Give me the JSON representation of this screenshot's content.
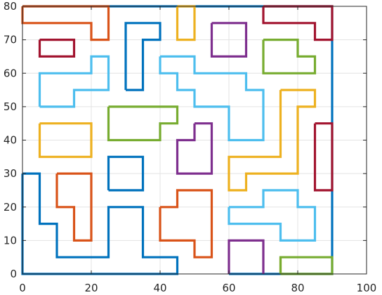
{
  "chart_data": {
    "type": "line",
    "title": "",
    "xlabel": "",
    "ylabel": "",
    "xlim": [
      0,
      100
    ],
    "ylim": [
      0,
      80
    ],
    "xticks": [
      0,
      20,
      40,
      60,
      80,
      100
    ],
    "yticks": [
      0,
      10,
      20,
      30,
      40,
      50,
      60,
      70,
      80
    ],
    "grid": true,
    "colors": {
      "blue": "#0072BD",
      "orange": "#D95319",
      "yellow": "#EDB120",
      "purple": "#7E2F8E",
      "green": "#77AC30",
      "lightblue": "#4DBEEE",
      "red": "#A2142F"
    },
    "series": [
      {
        "color": "blue",
        "points": [
          [
            0,
            30
          ],
          [
            0,
            0
          ],
          [
            45,
            0
          ],
          [
            45,
            5
          ],
          [
            35,
            5
          ],
          [
            35,
            20
          ],
          [
            25,
            20
          ],
          [
            25,
            5
          ],
          [
            10,
            5
          ],
          [
            10,
            15
          ],
          [
            5,
            15
          ],
          [
            5,
            30
          ],
          [
            0,
            30
          ]
        ]
      },
      {
        "color": "blue",
        "points": [
          [
            0,
            80
          ],
          [
            90,
            80
          ],
          [
            90,
            0
          ],
          [
            60,
            0
          ]
        ]
      },
      {
        "color": "blue",
        "points": [
          [
            30,
            55
          ],
          [
            30,
            75
          ],
          [
            40,
            75
          ],
          [
            40,
            70
          ],
          [
            35,
            70
          ],
          [
            35,
            55
          ],
          [
            30,
            55
          ]
        ]
      },
      {
        "color": "blue",
        "points": [
          [
            25,
            25
          ],
          [
            25,
            35
          ],
          [
            35,
            35
          ],
          [
            35,
            25
          ],
          [
            25,
            25
          ]
        ]
      },
      {
        "color": "orange",
        "points": [
          [
            0,
            80
          ],
          [
            25,
            80
          ],
          [
            25,
            70
          ],
          [
            20,
            70
          ],
          [
            20,
            75
          ],
          [
            0,
            75
          ],
          [
            0,
            80
          ]
        ]
      },
      {
        "color": "orange",
        "points": [
          [
            10,
            30
          ],
          [
            20,
            30
          ],
          [
            20,
            10
          ],
          [
            15,
            10
          ],
          [
            15,
            20
          ],
          [
            10,
            20
          ],
          [
            10,
            30
          ]
        ]
      },
      {
        "color": "orange",
        "points": [
          [
            40,
            20
          ],
          [
            45,
            20
          ],
          [
            45,
            25
          ],
          [
            55,
            25
          ],
          [
            55,
            5
          ],
          [
            50,
            5
          ],
          [
            50,
            10
          ],
          [
            40,
            10
          ],
          [
            40,
            20
          ]
        ]
      },
      {
        "color": "yellow",
        "points": [
          [
            45,
            80
          ],
          [
            50,
            80
          ],
          [
            50,
            70
          ],
          [
            45,
            70
          ],
          [
            45,
            80
          ]
        ]
      },
      {
        "color": "yellow",
        "points": [
          [
            5,
            45
          ],
          [
            20,
            45
          ],
          [
            20,
            35
          ],
          [
            5,
            35
          ],
          [
            5,
            45
          ]
        ]
      },
      {
        "color": "yellow",
        "points": [
          [
            75,
            55
          ],
          [
            85,
            55
          ],
          [
            85,
            50
          ],
          [
            80,
            50
          ],
          [
            80,
            30
          ],
          [
            65,
            30
          ],
          [
            65,
            25
          ],
          [
            60,
            25
          ],
          [
            60,
            35
          ],
          [
            75,
            35
          ],
          [
            75,
            55
          ]
        ]
      },
      {
        "color": "yellow",
        "points": [
          [
            75,
            5
          ],
          [
            75,
            0
          ]
        ]
      },
      {
        "color": "red",
        "points": [
          [
            70,
            80
          ],
          [
            90,
            80
          ],
          [
            90,
            70
          ],
          [
            85,
            70
          ],
          [
            85,
            75
          ],
          [
            70,
            75
          ],
          [
            70,
            80
          ]
        ]
      },
      {
        "color": "red",
        "points": [
          [
            5,
            70
          ],
          [
            15,
            70
          ],
          [
            15,
            65
          ],
          [
            5,
            65
          ],
          [
            5,
            70
          ]
        ]
      },
      {
        "color": "red",
        "points": [
          [
            85,
            45
          ],
          [
            90,
            45
          ],
          [
            90,
            25
          ],
          [
            85,
            25
          ],
          [
            85,
            45
          ]
        ]
      },
      {
        "color": "purple",
        "points": [
          [
            55,
            75
          ],
          [
            65,
            75
          ],
          [
            65,
            65
          ],
          [
            55,
            65
          ],
          [
            55,
            75
          ]
        ]
      },
      {
        "color": "purple",
        "points": [
          [
            50,
            45
          ],
          [
            55,
            45
          ],
          [
            55,
            30
          ],
          [
            45,
            30
          ],
          [
            45,
            40
          ],
          [
            50,
            40
          ],
          [
            50,
            45
          ]
        ]
      },
      {
        "color": "purple",
        "points": [
          [
            60,
            0
          ],
          [
            60,
            10
          ],
          [
            70,
            10
          ],
          [
            70,
            0
          ]
        ]
      },
      {
        "color": "green",
        "points": [
          [
            70,
            70
          ],
          [
            80,
            70
          ],
          [
            80,
            65
          ],
          [
            85,
            65
          ],
          [
            85,
            60
          ],
          [
            70,
            60
          ],
          [
            70,
            70
          ]
        ]
      },
      {
        "color": "green",
        "points": [
          [
            25,
            50
          ],
          [
            45,
            50
          ],
          [
            45,
            45
          ],
          [
            40,
            45
          ],
          [
            40,
            40
          ],
          [
            25,
            40
          ],
          [
            25,
            50
          ]
        ]
      },
      {
        "color": "green",
        "points": [
          [
            75,
            0
          ],
          [
            75,
            5
          ],
          [
            90,
            5
          ],
          [
            90,
            0
          ],
          [
            75,
            0
          ]
        ]
      },
      {
        "color": "lightblue",
        "points": [
          [
            5,
            50
          ],
          [
            5,
            60
          ],
          [
            20,
            60
          ],
          [
            20,
            65
          ],
          [
            25,
            65
          ],
          [
            25,
            55
          ],
          [
            15,
            55
          ],
          [
            15,
            50
          ],
          [
            5,
            50
          ]
        ]
      },
      {
        "color": "lightblue",
        "points": [
          [
            40,
            65
          ],
          [
            50,
            65
          ],
          [
            50,
            60
          ],
          [
            65,
            60
          ],
          [
            65,
            55
          ],
          [
            70,
            55
          ],
          [
            70,
            40
          ],
          [
            60,
            40
          ],
          [
            60,
            50
          ],
          [
            50,
            50
          ],
          [
            50,
            55
          ],
          [
            45,
            55
          ],
          [
            45,
            60
          ],
          [
            40,
            60
          ],
          [
            40,
            65
          ]
        ]
      },
      {
        "color": "lightblue",
        "points": [
          [
            60,
            20
          ],
          [
            70,
            20
          ],
          [
            70,
            25
          ],
          [
            80,
            25
          ],
          [
            80,
            20
          ],
          [
            85,
            20
          ],
          [
            85,
            10
          ],
          [
            75,
            10
          ],
          [
            75,
            15
          ],
          [
            60,
            15
          ],
          [
            60,
            20
          ]
        ]
      }
    ]
  }
}
